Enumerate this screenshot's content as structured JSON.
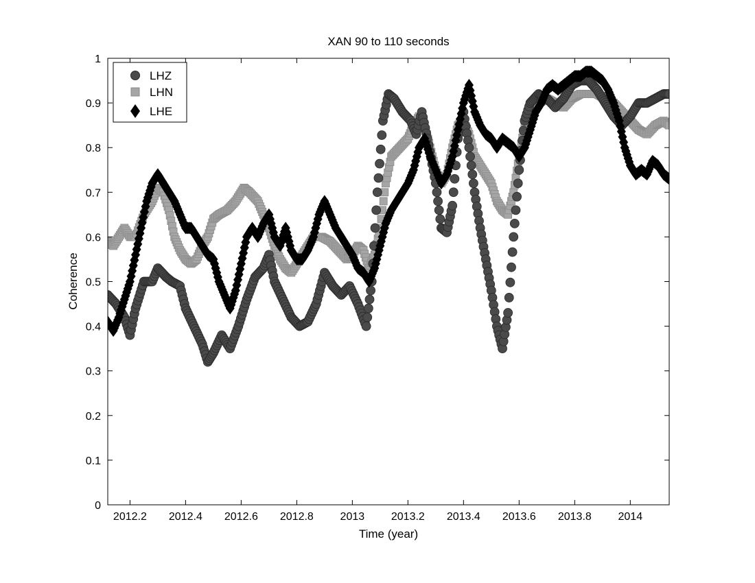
{
  "chart_data": {
    "type": "scatter",
    "title": "XAN 90 to 110 seconds",
    "xlabel": "Time (year)",
    "ylabel": "Coherence",
    "xlim": [
      2012.12,
      2014.14
    ],
    "ylim": [
      0,
      1
    ],
    "xticks": [
      2012.2,
      2012.4,
      2012.6,
      2012.8,
      2013.0,
      2013.2,
      2013.4,
      2013.6,
      2013.8,
      2014.0
    ],
    "xtick_labels": [
      "2012.2",
      "2012.4",
      "2012.6",
      "2012.8",
      "2013",
      "2013.2",
      "2013.4",
      "2013.6",
      "2013.8",
      "2014"
    ],
    "yticks": [
      0,
      0.1,
      0.2,
      0.3,
      0.4,
      0.5,
      0.6,
      0.7,
      0.8,
      0.9,
      1
    ],
    "ytick_labels": [
      "0",
      "0.1",
      "0.2",
      "0.3",
      "0.4",
      "0.5",
      "0.6",
      "0.7",
      "0.8",
      "0.9",
      "1"
    ],
    "grid": false,
    "legend_position": "top-left",
    "series": [
      {
        "name": "LHZ",
        "marker": "circle",
        "color": "#4a4a4a",
        "x": [
          2012.12,
          2012.15,
          2012.18,
          2012.2,
          2012.22,
          2012.25,
          2012.28,
          2012.3,
          2012.33,
          2012.35,
          2012.38,
          2012.4,
          2012.43,
          2012.46,
          2012.48,
          2012.5,
          2012.53,
          2012.56,
          2012.59,
          2012.62,
          2012.65,
          2012.68,
          2012.7,
          2012.72,
          2012.75,
          2012.78,
          2012.81,
          2012.84,
          2012.87,
          2012.9,
          2012.93,
          2012.96,
          2012.99,
          2013.02,
          2013.05,
          2013.07,
          2013.09,
          2013.11,
          2013.13,
          2013.15,
          2013.18,
          2013.21,
          2013.23,
          2013.25,
          2013.27,
          2013.3,
          2013.32,
          2013.34,
          2013.36,
          2013.38,
          2013.4,
          2013.42,
          2013.44,
          2013.46,
          2013.48,
          2013.5,
          2013.52,
          2013.54,
          2013.56,
          2013.58,
          2013.6,
          2013.62,
          2013.64,
          2013.67,
          2013.7,
          2013.73,
          2013.76,
          2013.79,
          2013.82,
          2013.85,
          2013.88,
          2013.91,
          2013.94,
          2013.97,
          2014.0,
          2014.03,
          2014.06,
          2014.09,
          2014.12,
          2014.14
        ],
        "y": [
          0.47,
          0.45,
          0.42,
          0.38,
          0.44,
          0.5,
          0.5,
          0.53,
          0.51,
          0.5,
          0.49,
          0.44,
          0.4,
          0.36,
          0.32,
          0.34,
          0.38,
          0.35,
          0.4,
          0.46,
          0.51,
          0.53,
          0.56,
          0.5,
          0.46,
          0.42,
          0.4,
          0.41,
          0.45,
          0.52,
          0.49,
          0.47,
          0.49,
          0.45,
          0.4,
          0.5,
          0.7,
          0.86,
          0.92,
          0.91,
          0.88,
          0.86,
          0.83,
          0.88,
          0.82,
          0.72,
          0.62,
          0.61,
          0.67,
          0.82,
          0.88,
          0.8,
          0.7,
          0.62,
          0.55,
          0.48,
          0.4,
          0.35,
          0.43,
          0.6,
          0.75,
          0.86,
          0.9,
          0.92,
          0.91,
          0.89,
          0.91,
          0.94,
          0.95,
          0.95,
          0.93,
          0.9,
          0.87,
          0.85,
          0.87,
          0.9,
          0.9,
          0.91,
          0.92,
          0.92
        ]
      },
      {
        "name": "LHN",
        "marker": "square",
        "color": "#a6a6a6",
        "x": [
          2012.12,
          2012.14,
          2012.16,
          2012.18,
          2012.2,
          2012.22,
          2012.25,
          2012.28,
          2012.3,
          2012.32,
          2012.34,
          2012.36,
          2012.38,
          2012.4,
          2012.42,
          2012.44,
          2012.46,
          2012.48,
          2012.5,
          2012.52,
          2012.55,
          2012.58,
          2012.61,
          2012.63,
          2012.66,
          2012.68,
          2012.7,
          2012.72,
          2012.74,
          2012.76,
          2012.78,
          2012.8,
          2012.83,
          2012.86,
          2012.89,
          2012.92,
          2012.95,
          2012.98,
          2013.0,
          2013.02,
          2013.04,
          2013.06,
          2013.08,
          2013.1,
          2013.12,
          2013.14,
          2013.17,
          2013.2,
          2013.22,
          2013.24,
          2013.26,
          2013.28,
          2013.3,
          2013.32,
          2013.34,
          2013.36,
          2013.38,
          2013.4,
          2013.42,
          2013.44,
          2013.46,
          2013.48,
          2013.5,
          2013.52,
          2013.54,
          2013.56,
          2013.58,
          2013.6,
          2013.62,
          2013.64,
          2013.67,
          2013.7,
          2013.73,
          2013.76,
          2013.79,
          2013.82,
          2013.85,
          2013.88,
          2013.91,
          2013.94,
          2013.97,
          2014.0,
          2014.03,
          2014.06,
          2014.09,
          2014.12,
          2014.14
        ],
        "y": [
          0.59,
          0.58,
          0.6,
          0.62,
          0.6,
          0.6,
          0.65,
          0.68,
          0.71,
          0.7,
          0.66,
          0.6,
          0.57,
          0.55,
          0.54,
          0.55,
          0.58,
          0.6,
          0.64,
          0.65,
          0.66,
          0.68,
          0.71,
          0.7,
          0.68,
          0.65,
          0.62,
          0.58,
          0.55,
          0.53,
          0.52,
          0.54,
          0.57,
          0.6,
          0.6,
          0.59,
          0.57,
          0.55,
          0.56,
          0.58,
          0.57,
          0.53,
          0.56,
          0.62,
          0.72,
          0.78,
          0.8,
          0.82,
          0.85,
          0.87,
          0.85,
          0.8,
          0.75,
          0.72,
          0.74,
          0.8,
          0.85,
          0.86,
          0.83,
          0.78,
          0.76,
          0.74,
          0.72,
          0.68,
          0.66,
          0.65,
          0.7,
          0.78,
          0.85,
          0.88,
          0.9,
          0.91,
          0.9,
          0.89,
          0.91,
          0.92,
          0.92,
          0.92,
          0.91,
          0.9,
          0.88,
          0.86,
          0.84,
          0.83,
          0.85,
          0.86,
          0.85
        ]
      },
      {
        "name": "LHE",
        "marker": "diamond",
        "color": "#000000",
        "x": [
          2012.12,
          2012.14,
          2012.16,
          2012.18,
          2012.2,
          2012.22,
          2012.24,
          2012.26,
          2012.28,
          2012.3,
          2012.32,
          2012.34,
          2012.36,
          2012.38,
          2012.4,
          2012.42,
          2012.44,
          2012.46,
          2012.48,
          2012.5,
          2012.52,
          2012.54,
          2012.56,
          2012.58,
          2012.6,
          2012.62,
          2012.64,
          2012.66,
          2012.68,
          2012.7,
          2012.72,
          2012.74,
          2012.76,
          2012.78,
          2012.8,
          2012.82,
          2012.84,
          2012.86,
          2012.88,
          2012.9,
          2012.92,
          2012.94,
          2012.96,
          2012.98,
          2013.0,
          2013.02,
          2013.04,
          2013.06,
          2013.08,
          2013.1,
          2013.12,
          2013.14,
          2013.16,
          2013.18,
          2013.2,
          2013.22,
          2013.24,
          2013.26,
          2013.28,
          2013.3,
          2013.32,
          2013.34,
          2013.36,
          2013.38,
          2013.4,
          2013.42,
          2013.44,
          2013.46,
          2013.48,
          2013.5,
          2013.52,
          2013.54,
          2013.56,
          2013.58,
          2013.6,
          2013.62,
          2013.64,
          2013.66,
          2013.68,
          2013.7,
          2013.72,
          2013.74,
          2013.76,
          2013.78,
          2013.8,
          2013.82,
          2013.84,
          2013.86,
          2013.88,
          2013.9,
          2013.92,
          2013.94,
          2013.96,
          2013.98,
          2014.0,
          2014.02,
          2014.04,
          2014.06,
          2014.08,
          2014.1,
          2014.12,
          2014.14
        ],
        "y": [
          0.41,
          0.39,
          0.42,
          0.46,
          0.5,
          0.56,
          0.62,
          0.68,
          0.72,
          0.74,
          0.72,
          0.7,
          0.68,
          0.65,
          0.62,
          0.62,
          0.6,
          0.58,
          0.56,
          0.55,
          0.5,
          0.47,
          0.44,
          0.48,
          0.54,
          0.6,
          0.62,
          0.6,
          0.63,
          0.65,
          0.6,
          0.58,
          0.62,
          0.57,
          0.55,
          0.55,
          0.57,
          0.6,
          0.65,
          0.68,
          0.65,
          0.62,
          0.6,
          0.58,
          0.56,
          0.53,
          0.52,
          0.5,
          0.53,
          0.58,
          0.63,
          0.66,
          0.68,
          0.7,
          0.72,
          0.75,
          0.8,
          0.82,
          0.78,
          0.75,
          0.72,
          0.74,
          0.78,
          0.84,
          0.9,
          0.94,
          0.88,
          0.85,
          0.83,
          0.82,
          0.8,
          0.82,
          0.81,
          0.8,
          0.78,
          0.8,
          0.84,
          0.88,
          0.9,
          0.93,
          0.94,
          0.93,
          0.94,
          0.95,
          0.96,
          0.96,
          0.97,
          0.97,
          0.96,
          0.95,
          0.93,
          0.9,
          0.86,
          0.8,
          0.76,
          0.74,
          0.75,
          0.74,
          0.77,
          0.76,
          0.74,
          0.73
        ]
      }
    ]
  }
}
